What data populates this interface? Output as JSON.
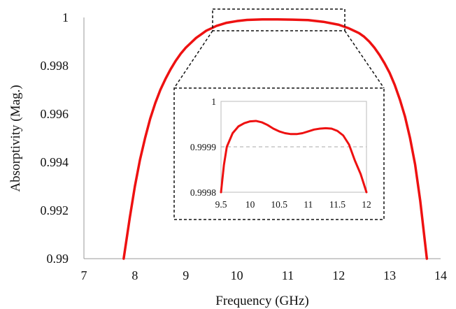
{
  "chart_data": [
    {
      "type": "line",
      "xlabel": "Frequency (GHz)",
      "ylabel": "Absorptivity (Mag.)",
      "xlim": [
        7,
        14
      ],
      "ylim": [
        0.99,
        1.0
      ],
      "xticks": [
        "7",
        "8",
        "9",
        "10",
        "11",
        "12",
        "13",
        "14"
      ],
      "yticks": [
        "0.99",
        "0.992",
        "0.994",
        "0.996",
        "0.998",
        "1"
      ],
      "grid": false,
      "series_color": "#ee1111",
      "series": [
        {
          "x": [
            7.78,
            7.9,
            8.0,
            8.1,
            8.2,
            8.3,
            8.4,
            8.5,
            8.6,
            8.7,
            8.8,
            8.9,
            9.0,
            9.1,
            9.2,
            9.3,
            9.4,
            9.5,
            9.6,
            9.8,
            10.0,
            10.2,
            10.5,
            10.8,
            11.1,
            11.4,
            11.7,
            12.0,
            12.2,
            12.4,
            12.5,
            12.6,
            12.7,
            12.8,
            12.9,
            13.0,
            13.1,
            13.2,
            13.3,
            13.4,
            13.5,
            13.6,
            13.73
          ],
          "y": [
            0.99,
            0.9917,
            0.993,
            0.9941,
            0.995,
            0.9958,
            0.99645,
            0.997,
            0.99745,
            0.99785,
            0.9982,
            0.9985,
            0.99875,
            0.99895,
            0.99915,
            0.9993,
            0.99945,
            0.99955,
            0.99965,
            0.99978,
            0.99985,
            0.9999,
            0.99992,
            0.99992,
            0.99991,
            0.99989,
            0.99982,
            0.9997,
            0.99955,
            0.99935,
            0.9992,
            0.999,
            0.99875,
            0.99845,
            0.9981,
            0.9977,
            0.9972,
            0.9966,
            0.9959,
            0.995,
            0.9939,
            0.9924,
            0.99
          ]
        }
      ]
    },
    {
      "type": "line",
      "xlim": [
        9.5,
        12
      ],
      "ylim": [
        0.9998,
        1.0
      ],
      "xticks": [
        "9.5",
        "10",
        "10.5",
        "11",
        "11.5",
        "12"
      ],
      "yticks": [
        "0.9998",
        "0.9999",
        "1"
      ],
      "reference_line_y": 0.9999,
      "series_color": "#ee1111",
      "series": [
        {
          "x": [
            9.5,
            9.55,
            9.6,
            9.7,
            9.8,
            9.9,
            10.0,
            10.1,
            10.2,
            10.3,
            10.4,
            10.5,
            10.6,
            10.7,
            10.8,
            10.9,
            11.0,
            11.1,
            11.2,
            11.3,
            11.4,
            11.5,
            11.6,
            11.7,
            11.8,
            11.9,
            11.95,
            12.0
          ],
          "y": [
            0.9998,
            0.99986,
            0.9999,
            0.99993,
            0.999945,
            0.999952,
            0.999956,
            0.999957,
            0.999954,
            0.999948,
            0.99994,
            0.999934,
            0.99993,
            0.999928,
            0.999928,
            0.99993,
            0.999934,
            0.999938,
            0.99994,
            0.999941,
            0.99994,
            0.999935,
            0.999925,
            0.999905,
            0.99987,
            0.99984,
            0.99982,
            0.9998
          ]
        }
      ]
    }
  ]
}
